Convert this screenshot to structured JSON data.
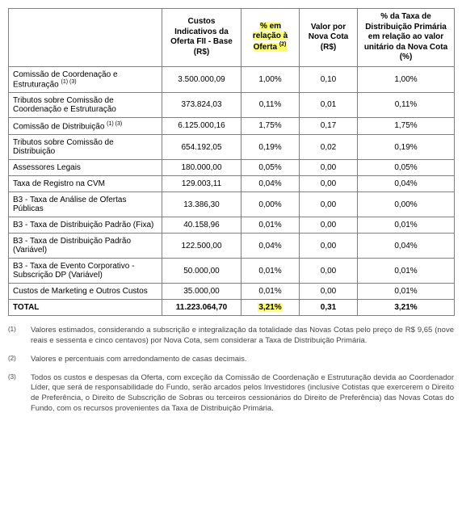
{
  "table": {
    "headers": {
      "c0": "",
      "c1": "Custos Indicativos da Oferta FII - Base (R$)",
      "c2": "% em relação à Oferta",
      "c2_sup": "(2)",
      "c3": "Valor por Nova Cota (R$)",
      "c4": "% da Taxa de Distribuição Primária em relação ao valor unitário da Nova Cota (%)"
    },
    "rows": [
      {
        "desc": "Comissão de Coordenação e Estruturação",
        "sup": "(1) (3)",
        "custo": "3.500.000,09",
        "pct": "1,00%",
        "vnc": "0,10",
        "txd": "1,00%"
      },
      {
        "desc": "Tributos sobre Comissão de Coordenação e Estruturação",
        "sup": "",
        "custo": "373.824,03",
        "pct": "0,11%",
        "vnc": "0,01",
        "txd": "0,11%"
      },
      {
        "desc": "Comissão de Distribuição",
        "sup": "(1) (3)",
        "custo": "6.125.000,16",
        "pct": "1,75%",
        "vnc": "0,17",
        "txd": "1,75%"
      },
      {
        "desc": "Tributos sobre Comissão de Distribuição",
        "sup": "",
        "custo": "654.192,05",
        "pct": "0,19%",
        "vnc": "0,02",
        "txd": "0,19%"
      },
      {
        "desc": "Assessores Legais",
        "sup": "",
        "custo": "180.000,00",
        "pct": "0,05%",
        "vnc": "0,00",
        "txd": "0,05%"
      },
      {
        "desc": "Taxa de Registro na CVM",
        "sup": "",
        "custo": "129.003,11",
        "pct": "0,04%",
        "vnc": "0,00",
        "txd": "0,04%"
      },
      {
        "desc": "B3 - Taxa de Análise de Ofertas Públicas",
        "sup": "",
        "custo": "13.386,30",
        "pct": "0,00%",
        "vnc": "0,00",
        "txd": "0,00%"
      },
      {
        "desc": "B3 - Taxa de Distribuição Padrão (Fixa)",
        "sup": "",
        "custo": "40.158,96",
        "pct": "0,01%",
        "vnc": "0,00",
        "txd": "0,01%"
      },
      {
        "desc": "B3 - Taxa de Distribuição Padrão (Variável)",
        "sup": "",
        "custo": "122.500,00",
        "pct": "0,04%",
        "vnc": "0,00",
        "txd": "0,04%"
      },
      {
        "desc": "B3 - Taxa de Evento Corporativo - Subscrição DP (Variável)",
        "sup": "",
        "custo": "50.000,00",
        "pct": "0,01%",
        "vnc": "0,00",
        "txd": "0,01%"
      },
      {
        "desc": "Custos de Marketing e Outros Custos",
        "sup": "",
        "custo": "35.000,00",
        "pct": "0,01%",
        "vnc": "0,00",
        "txd": "0,01%"
      }
    ],
    "total": {
      "label": "TOTAL",
      "custo": "11.223.064,70",
      "pct": "3,21%",
      "vnc": "0,31",
      "txd": "3,21%"
    }
  },
  "notes": [
    {
      "key": "(1)",
      "text": "Valores estimados, considerando a subscrição e integralização da totalidade das Novas Cotas pelo preço de R$ 9,65 (nove reais e sessenta e cinco centavos) por Nova Cota, sem considerar a Taxa de Distribuição Primária."
    },
    {
      "key": "(2)",
      "text": "Valores e percentuais com arredondamento de casas decimais."
    },
    {
      "key": "(3)",
      "text": "Todos os custos e despesas da Oferta, com exceção da Comissão de Coordenação e Estruturação devida ao Coordenador Líder, que será de responsabilidade do Fundo, serão arcados pelos Investidores (inclusive Cotistas que exercerem o Direito de Preferência, o Direito de Subscrição de Sobras ou terceiros cessionários do Direito de Preferência) das Novas Cotas do Fundo, com os recursos provenientes da Taxa de Distribuição Primária."
    }
  ]
}
